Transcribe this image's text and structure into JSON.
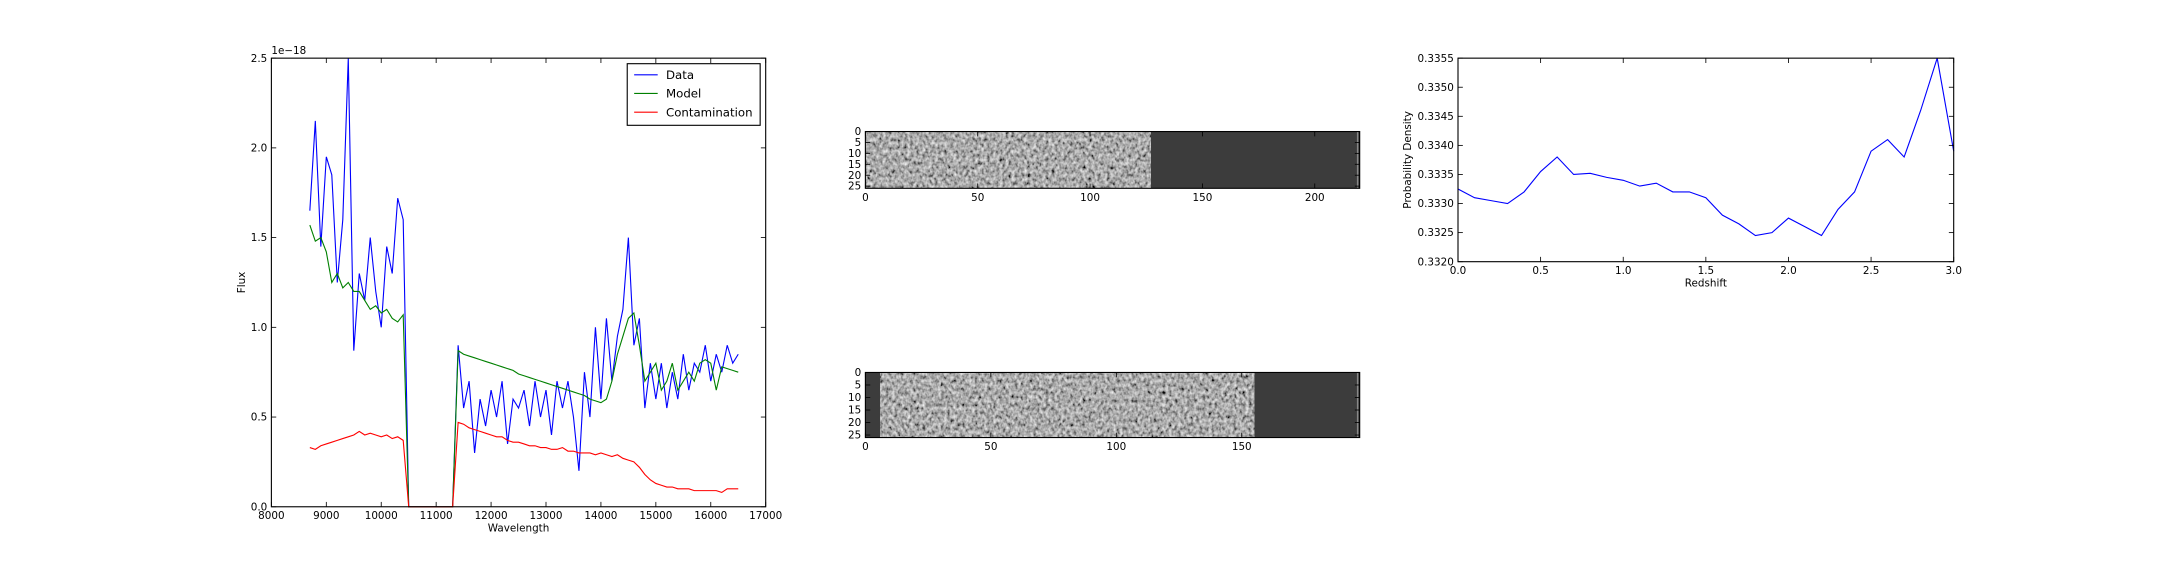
{
  "chart_data": [
    {
      "type": "line",
      "xlabel": "Wavelength",
      "ylabel": "Flux",
      "offset_text": "1e−18",
      "x": [
        8700,
        8800,
        8900,
        9000,
        9100,
        9200,
        9300,
        9400,
        9500,
        9600,
        9700,
        9800,
        9900,
        10000,
        10100,
        10200,
        10300,
        10400,
        10500,
        10600,
        10700,
        10800,
        10900,
        11000,
        11100,
        11200,
        11300,
        11400,
        11500,
        11600,
        11700,
        11800,
        11900,
        12000,
        12100,
        12200,
        12300,
        12400,
        12500,
        12600,
        12700,
        12800,
        12900,
        13000,
        13100,
        13200,
        13300,
        13400,
        13500,
        13600,
        13700,
        13800,
        13900,
        14000,
        14100,
        14200,
        14300,
        14400,
        14500,
        14600,
        14700,
        14800,
        14900,
        15000,
        15100,
        15200,
        15300,
        15400,
        15500,
        15600,
        15700,
        15800,
        15900,
        16000,
        16100,
        16200,
        16300,
        16400,
        16500
      ],
      "series": [
        {
          "name": "Data",
          "color": "#0000ff",
          "values": [
            1.65,
            2.15,
            1.45,
            1.95,
            1.85,
            1.25,
            1.6,
            2.5,
            0.87,
            1.3,
            1.15,
            1.5,
            1.2,
            1.0,
            1.45,
            1.3,
            1.72,
            1.6,
            0,
            0,
            0,
            0,
            0,
            0,
            0,
            0,
            0,
            0.9,
            0.55,
            0.7,
            0.3,
            0.6,
            0.45,
            0.65,
            0.5,
            0.7,
            0.35,
            0.6,
            0.55,
            0.65,
            0.45,
            0.7,
            0.5,
            0.65,
            0.4,
            0.7,
            0.55,
            0.7,
            0.5,
            0.2,
            0.75,
            0.5,
            1.0,
            0.6,
            1.05,
            0.7,
            0.95,
            1.1,
            1.5,
            0.9,
            1.05,
            0.55,
            0.8,
            0.6,
            0.8,
            0.55,
            0.75,
            0.6,
            0.85,
            0.65,
            0.8,
            0.75,
            0.9,
            0.7,
            0.85,
            0.75,
            0.9,
            0.8,
            0.85
          ]
        },
        {
          "name": "Model",
          "color": "#008000",
          "values": [
            1.57,
            1.48,
            1.5,
            1.42,
            1.25,
            1.3,
            1.22,
            1.25,
            1.2,
            1.2,
            1.15,
            1.1,
            1.12,
            1.08,
            1.1,
            1.05,
            1.03,
            1.07,
            0,
            0,
            0,
            0,
            0,
            0,
            0,
            0,
            0,
            0.87,
            0.85,
            0.84,
            0.83,
            0.82,
            0.81,
            0.8,
            0.79,
            0.78,
            0.77,
            0.76,
            0.74,
            0.73,
            0.72,
            0.71,
            0.7,
            0.69,
            0.68,
            0.67,
            0.66,
            0.65,
            0.64,
            0.63,
            0.62,
            0.6,
            0.59,
            0.58,
            0.6,
            0.7,
            0.85,
            0.95,
            1.05,
            1.08,
            0.9,
            0.7,
            0.75,
            0.8,
            0.65,
            0.7,
            0.8,
            0.65,
            0.7,
            0.75,
            0.7,
            0.8,
            0.82,
            0.8,
            0.65,
            0.78,
            0.77,
            0.76,
            0.75
          ]
        },
        {
          "name": "Contamination",
          "color": "#ff0000",
          "values": [
            0.33,
            0.32,
            0.34,
            0.35,
            0.36,
            0.37,
            0.38,
            0.39,
            0.4,
            0.42,
            0.4,
            0.41,
            0.4,
            0.39,
            0.4,
            0.38,
            0.39,
            0.37,
            0,
            0,
            0,
            0,
            0,
            0,
            0,
            0,
            0,
            0.47,
            0.46,
            0.44,
            0.43,
            0.42,
            0.41,
            0.4,
            0.39,
            0.39,
            0.37,
            0.36,
            0.36,
            0.35,
            0.34,
            0.34,
            0.33,
            0.33,
            0.32,
            0.32,
            0.33,
            0.31,
            0.31,
            0.3,
            0.3,
            0.3,
            0.29,
            0.3,
            0.29,
            0.28,
            0.29,
            0.27,
            0.26,
            0.25,
            0.22,
            0.18,
            0.15,
            0.13,
            0.12,
            0.11,
            0.11,
            0.1,
            0.1,
            0.1,
            0.09,
            0.09,
            0.09,
            0.09,
            0.09,
            0.08,
            0.1,
            0.1,
            0.1
          ]
        }
      ],
      "xlim": [
        8000,
        17000
      ],
      "xticks": [
        8000,
        9000,
        10000,
        11000,
        12000,
        13000,
        14000,
        15000,
        16000,
        17000
      ],
      "ylim": [
        0,
        2.5
      ],
      "yticks": [
        {
          "value": 0,
          "label": "0.0"
        },
        0.5,
        {
          "value": 1,
          "label": "1.0"
        },
        1.5,
        {
          "value": 2,
          "label": "2.0"
        },
        2.5
      ],
      "legend": "upper right"
    },
    {
      "type": "image",
      "xlim": [
        0,
        220
      ],
      "xticks": [
        0,
        50,
        100,
        150,
        200
      ],
      "ylim": [
        0,
        26
      ],
      "yticks": [
        0,
        5,
        10,
        15,
        20,
        25
      ],
      "y_inverted": true
    },
    {
      "type": "image",
      "xlim": [
        0,
        197
      ],
      "xticks": [
        0,
        50,
        100,
        150
      ],
      "ylim": [
        0,
        26
      ],
      "yticks": [
        0,
        5,
        10,
        15,
        20,
        25
      ],
      "y_inverted": true
    },
    {
      "type": "line",
      "xlabel": "Redshift",
      "ylabel": "Probability Density",
      "x": [
        0,
        0.1,
        0.2,
        0.3,
        0.4,
        0.5,
        0.6,
        0.7,
        0.8,
        0.9,
        1,
        1.1,
        1.2,
        1.3,
        1.4,
        1.5,
        1.6,
        1.7,
        1.8,
        1.9,
        2,
        2.1,
        2.2,
        2.3,
        2.4,
        2.5,
        2.6,
        2.7,
        2.8,
        2.9,
        3
      ],
      "series": [
        {
          "color": "#0000ff",
          "values": [
            0.33325,
            0.3331,
            0.33305,
            0.333,
            0.3332,
            0.33355,
            0.3338,
            0.3335,
            0.33352,
            0.33345,
            0.3334,
            0.3333,
            0.33335,
            0.3332,
            0.3332,
            0.3331,
            0.3328,
            0.33265,
            0.33245,
            0.3325,
            0.33275,
            0.3326,
            0.33245,
            0.3329,
            0.3332,
            0.3339,
            0.3341,
            0.3338,
            0.3346,
            0.3355,
            0.3339
          ]
        }
      ],
      "xlim": [
        0,
        3
      ],
      "xticks": [
        {
          "value": 0,
          "label": "0.0"
        },
        0.5,
        {
          "value": 1,
          "label": "1.0"
        },
        1.5,
        {
          "value": 2,
          "label": "2.0"
        },
        2.5,
        {
          "value": 3,
          "label": "3.0"
        }
      ],
      "ylim": [
        0.332,
        0.3355
      ],
      "yticks": [
        {
          "value": 0.332,
          "label": "0.3320"
        },
        0.3325,
        {
          "value": 0.333,
          "label": "0.3330"
        },
        0.3335,
        {
          "value": 0.334,
          "label": "0.3340"
        },
        0.3345,
        {
          "value": 0.335,
          "label": "0.3350"
        },
        0.3355
      ]
    }
  ]
}
